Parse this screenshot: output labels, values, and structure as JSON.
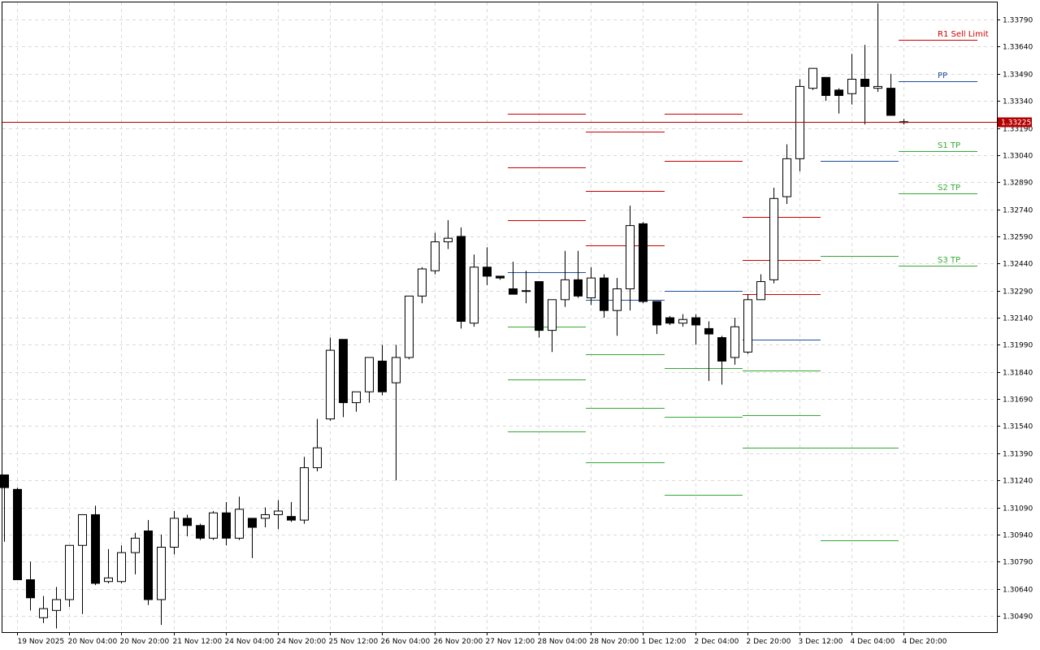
{
  "chart_data": {
    "type": "candlestick",
    "grid": true,
    "colors": {
      "up_body": "#ffffff",
      "down_body": "#000000",
      "wick": "#000000",
      "grid": "#d9d9d9",
      "resistance": "#cc0000",
      "pivot": "#1f4e9a",
      "support": "#33aa33",
      "price_badge": "#b20000",
      "price_badge_text": "#ffffff"
    },
    "y_range": [
      1.304,
      1.33885
    ],
    "y_ticks": [
      "1.33790",
      "1.33640",
      "1.33490",
      "1.33340",
      "1.33190",
      "1.33040",
      "1.32890",
      "1.32740",
      "1.32590",
      "1.32440",
      "1.32290",
      "1.32140",
      "1.31990",
      "1.31840",
      "1.31690",
      "1.31540",
      "1.31390",
      "1.31240",
      "1.31090",
      "1.30940",
      "1.30790",
      "1.30640",
      "1.30490"
    ],
    "x_tick_labels": [
      {
        "label": "19 Nov 2025",
        "bar": 1
      },
      {
        "label": "20 Nov 04:00",
        "bar": 5
      },
      {
        "label": "20 Nov 20:00",
        "bar": 9
      },
      {
        "label": "21 Nov 12:00",
        "bar": 13
      },
      {
        "label": "24 Nov 04:00",
        "bar": 17
      },
      {
        "label": "24 Nov 20:00",
        "bar": 21
      },
      {
        "label": "25 Nov 12:00",
        "bar": 25
      },
      {
        "label": "26 Nov 04:00",
        "bar": 29
      },
      {
        "label": "26 Nov 20:00",
        "bar": 33
      },
      {
        "label": "27 Nov 12:00",
        "bar": 37
      },
      {
        "label": "28 Nov 04:00",
        "bar": 41
      },
      {
        "label": "28 Nov 20:00",
        "bar": 45
      },
      {
        "label": "1 Dec 12:00",
        "bar": 49
      },
      {
        "label": "2 Dec 04:00",
        "bar": 53
      },
      {
        "label": "2 Dec 20:00",
        "bar": 57
      },
      {
        "label": "3 Dec 12:00",
        "bar": 61
      },
      {
        "label": "4 Dec 04:00",
        "bar": 65
      },
      {
        "label": "4 Dec 20:00",
        "bar": 69
      }
    ],
    "current_price": "1.33225",
    "candles": [
      {
        "o": 1.3127,
        "h": 1.3127,
        "l": 1.309,
        "c": 1.312
      },
      {
        "o": 1.3119,
        "h": 1.312,
        "l": 1.3069,
        "c": 1.3069
      },
      {
        "o": 1.3069,
        "h": 1.3079,
        "l": 1.3052,
        "c": 1.3059
      },
      {
        "o": 1.3048,
        "h": 1.306,
        "l": 1.3045,
        "c": 1.3053
      },
      {
        "o": 1.3052,
        "h": 1.3065,
        "l": 1.3042,
        "c": 1.3058
      },
      {
        "o": 1.3058,
        "h": 1.3088,
        "l": 1.3054,
        "c": 1.3088
      },
      {
        "o": 1.3088,
        "h": 1.3102,
        "l": 1.305,
        "c": 1.3105
      },
      {
        "o": 1.3105,
        "h": 1.311,
        "l": 1.3066,
        "c": 1.3067
      },
      {
        "o": 1.3068,
        "h": 1.3086,
        "l": 1.3067,
        "c": 1.307
      },
      {
        "o": 1.3068,
        "h": 1.3088,
        "l": 1.3067,
        "c": 1.3084
      },
      {
        "o": 1.3084,
        "h": 1.3095,
        "l": 1.3072,
        "c": 1.3092
      },
      {
        "o": 1.3096,
        "h": 1.3102,
        "l": 1.3055,
        "c": 1.3058
      },
      {
        "o": 1.3058,
        "h": 1.3094,
        "l": 1.3044,
        "c": 1.3087
      },
      {
        "o": 1.3087,
        "h": 1.3107,
        "l": 1.3083,
        "c": 1.3103
      },
      {
        "o": 1.3103,
        "h": 1.3105,
        "l": 1.3093,
        "c": 1.3099
      },
      {
        "o": 1.3099,
        "h": 1.31,
        "l": 1.3091,
        "c": 1.3092
      },
      {
        "o": 1.3092,
        "h": 1.3107,
        "l": 1.3091,
        "c": 1.3106
      },
      {
        "o": 1.3106,
        "h": 1.3112,
        "l": 1.3088,
        "c": 1.3092
      },
      {
        "o": 1.3092,
        "h": 1.3115,
        "l": 1.3091,
        "c": 1.3108
      },
      {
        "o": 1.3103,
        "h": 1.3103,
        "l": 1.3081,
        "c": 1.3098
      },
      {
        "o": 1.3103,
        "h": 1.3109,
        "l": 1.3098,
        "c": 1.3105
      },
      {
        "o": 1.3105,
        "h": 1.3113,
        "l": 1.3097,
        "c": 1.3107
      },
      {
        "o": 1.3104,
        "h": 1.3112,
        "l": 1.3101,
        "c": 1.3102
      },
      {
        "o": 1.3102,
        "h": 1.3137,
        "l": 1.31,
        "c": 1.3131
      },
      {
        "o": 1.3131,
        "h": 1.3158,
        "l": 1.3129,
        "c": 1.3142
      },
      {
        "o": 1.3158,
        "h": 1.3203,
        "l": 1.3157,
        "c": 1.3196
      },
      {
        "o": 1.3202,
        "h": 1.3202,
        "l": 1.3159,
        "c": 1.3167
      },
      {
        "o": 1.3167,
        "h": 1.3172,
        "l": 1.3162,
        "c": 1.3173
      },
      {
        "o": 1.3173,
        "h": 1.319,
        "l": 1.3167,
        "c": 1.3192
      },
      {
        "o": 1.319,
        "h": 1.3199,
        "l": 1.3171,
        "c": 1.3173
      },
      {
        "o": 1.3178,
        "h": 1.3199,
        "l": 1.3124,
        "c": 1.3192
      },
      {
        "o": 1.3192,
        "h": 1.3223,
        "l": 1.3191,
        "c": 1.3226
      },
      {
        "o": 1.3226,
        "h": 1.3242,
        "l": 1.3222,
        "c": 1.3241
      },
      {
        "o": 1.324,
        "h": 1.3261,
        "l": 1.3238,
        "c": 1.3256
      },
      {
        "o": 1.3256,
        "h": 1.3268,
        "l": 1.3252,
        "c": 1.3258
      },
      {
        "o": 1.3259,
        "h": 1.3264,
        "l": 1.3208,
        "c": 1.3212
      },
      {
        "o": 1.3211,
        "h": 1.3249,
        "l": 1.3209,
        "c": 1.3242
      },
      {
        "o": 1.3242,
        "h": 1.3253,
        "l": 1.3232,
        "c": 1.3237
      },
      {
        "o": 1.3237,
        "h": 1.3237,
        "l": 1.3235,
        "c": 1.3236
      },
      {
        "o": 1.323,
        "h": 1.3245,
        "l": 1.3227,
        "c": 1.3227
      },
      {
        "o": 1.3229,
        "h": 1.324,
        "l": 1.3222,
        "c": 1.3229
      },
      {
        "o": 1.3234,
        "h": 1.3234,
        "l": 1.3203,
        "c": 1.3207
      },
      {
        "o": 1.3207,
        "h": 1.3224,
        "l": 1.3195,
        "c": 1.3224
      },
      {
        "o": 1.3224,
        "h": 1.3251,
        "l": 1.322,
        "c": 1.3235
      },
      {
        "o": 1.3235,
        "h": 1.3251,
        "l": 1.3225,
        "c": 1.3226
      },
      {
        "o": 1.3225,
        "h": 1.3242,
        "l": 1.3221,
        "c": 1.3236
      },
      {
        "o": 1.3236,
        "h": 1.3238,
        "l": 1.3214,
        "c": 1.3218
      },
      {
        "o": 1.3218,
        "h": 1.3236,
        "l": 1.3204,
        "c": 1.323
      },
      {
        "o": 1.323,
        "h": 1.3276,
        "l": 1.3218,
        "c": 1.3265
      },
      {
        "o": 1.3266,
        "h": 1.3267,
        "l": 1.3222,
        "c": 1.3223
      },
      {
        "o": 1.3223,
        "h": 1.3223,
        "l": 1.3205,
        "c": 1.321
      },
      {
        "o": 1.3214,
        "h": 1.3215,
        "l": 1.321,
        "c": 1.3211
      },
      {
        "o": 1.3211,
        "h": 1.3216,
        "l": 1.3209,
        "c": 1.3213
      },
      {
        "o": 1.3214,
        "h": 1.3216,
        "l": 1.3199,
        "c": 1.321
      },
      {
        "o": 1.3208,
        "h": 1.3212,
        "l": 1.3179,
        "c": 1.3205
      },
      {
        "o": 1.3203,
        "h": 1.3204,
        "l": 1.3177,
        "c": 1.319
      },
      {
        "o": 1.3192,
        "h": 1.3214,
        "l": 1.3188,
        "c": 1.3209
      },
      {
        "o": 1.3195,
        "h": 1.3227,
        "l": 1.3194,
        "c": 1.3224
      },
      {
        "o": 1.3224,
        "h": 1.3238,
        "l": 1.3224,
        "c": 1.3234
      },
      {
        "o": 1.3235,
        "h": 1.3286,
        "l": 1.3233,
        "c": 1.328
      },
      {
        "o": 1.3281,
        "h": 1.331,
        "l": 1.3277,
        "c": 1.3302
      },
      {
        "o": 1.3302,
        "h": 1.3346,
        "l": 1.3295,
        "c": 1.3342
      },
      {
        "o": 1.3341,
        "h": 1.3352,
        "l": 1.334,
        "c": 1.3352
      },
      {
        "o": 1.3347,
        "h": 1.3347,
        "l": 1.3334,
        "c": 1.3337
      },
      {
        "o": 1.334,
        "h": 1.3341,
        "l": 1.3327,
        "c": 1.3337
      },
      {
        "o": 1.3338,
        "h": 1.336,
        "l": 1.3332,
        "c": 1.3346
      },
      {
        "o": 1.3346,
        "h": 1.3365,
        "l": 1.3321,
        "c": 1.3342
      },
      {
        "o": 1.3341,
        "h": 1.3388,
        "l": 1.3339,
        "c": 1.3342
      },
      {
        "o": 1.3341,
        "h": 1.3349,
        "l": 1.3326,
        "c": 1.3326
      },
      {
        "o": 1.33225,
        "h": 1.3324,
        "l": 1.3321,
        "c": 1.33225
      }
    ],
    "pivot_segments": [
      {
        "start": 39,
        "end": 45,
        "r": [
          1.3327,
          1.3297,
          1.3268
        ],
        "pp": 1.3239,
        "s": [
          1.3209,
          1.318,
          1.3151
        ]
      },
      {
        "start": 45,
        "end": 51,
        "r": [
          1.3317,
          1.3284,
          1.3254
        ],
        "pp": 1.3224,
        "s": [
          1.3194,
          1.3164,
          1.3134
        ]
      },
      {
        "start": 51,
        "end": 57,
        "r": [
          1.3327,
          1.3301
        ],
        "pp": 1.3229,
        "s": [
          1.3186,
          1.3159,
          1.3116
        ]
      },
      {
        "start": 57,
        "end": 63,
        "r": [
          1.327,
          1.3246,
          1.3227
        ],
        "pp": 1.3202,
        "s": [
          1.3185,
          1.316,
          1.3142
        ]
      },
      {
        "start": 63,
        "end": 69,
        "r": [],
        "pp": 1.3301,
        "s": [
          1.3248,
          1.3142,
          1.3091
        ]
      },
      {
        "start": 69,
        "end": 75,
        "r": [
          1.3368
        ],
        "pp": 1.3345,
        "s": [
          1.3306,
          1.3283,
          1.3243
        ]
      }
    ],
    "level_labels": [
      {
        "text": "R1 Sell Limit",
        "value": 1.3368,
        "kind": "resistance"
      },
      {
        "text": "PP",
        "value": 1.3345,
        "kind": "pivot"
      },
      {
        "text": "S1 TP",
        "value": 1.3306,
        "kind": "support"
      },
      {
        "text": "S2 TP",
        "value": 1.3283,
        "kind": "support"
      },
      {
        "text": "S3 TP",
        "value": 1.3243,
        "kind": "support"
      }
    ]
  }
}
